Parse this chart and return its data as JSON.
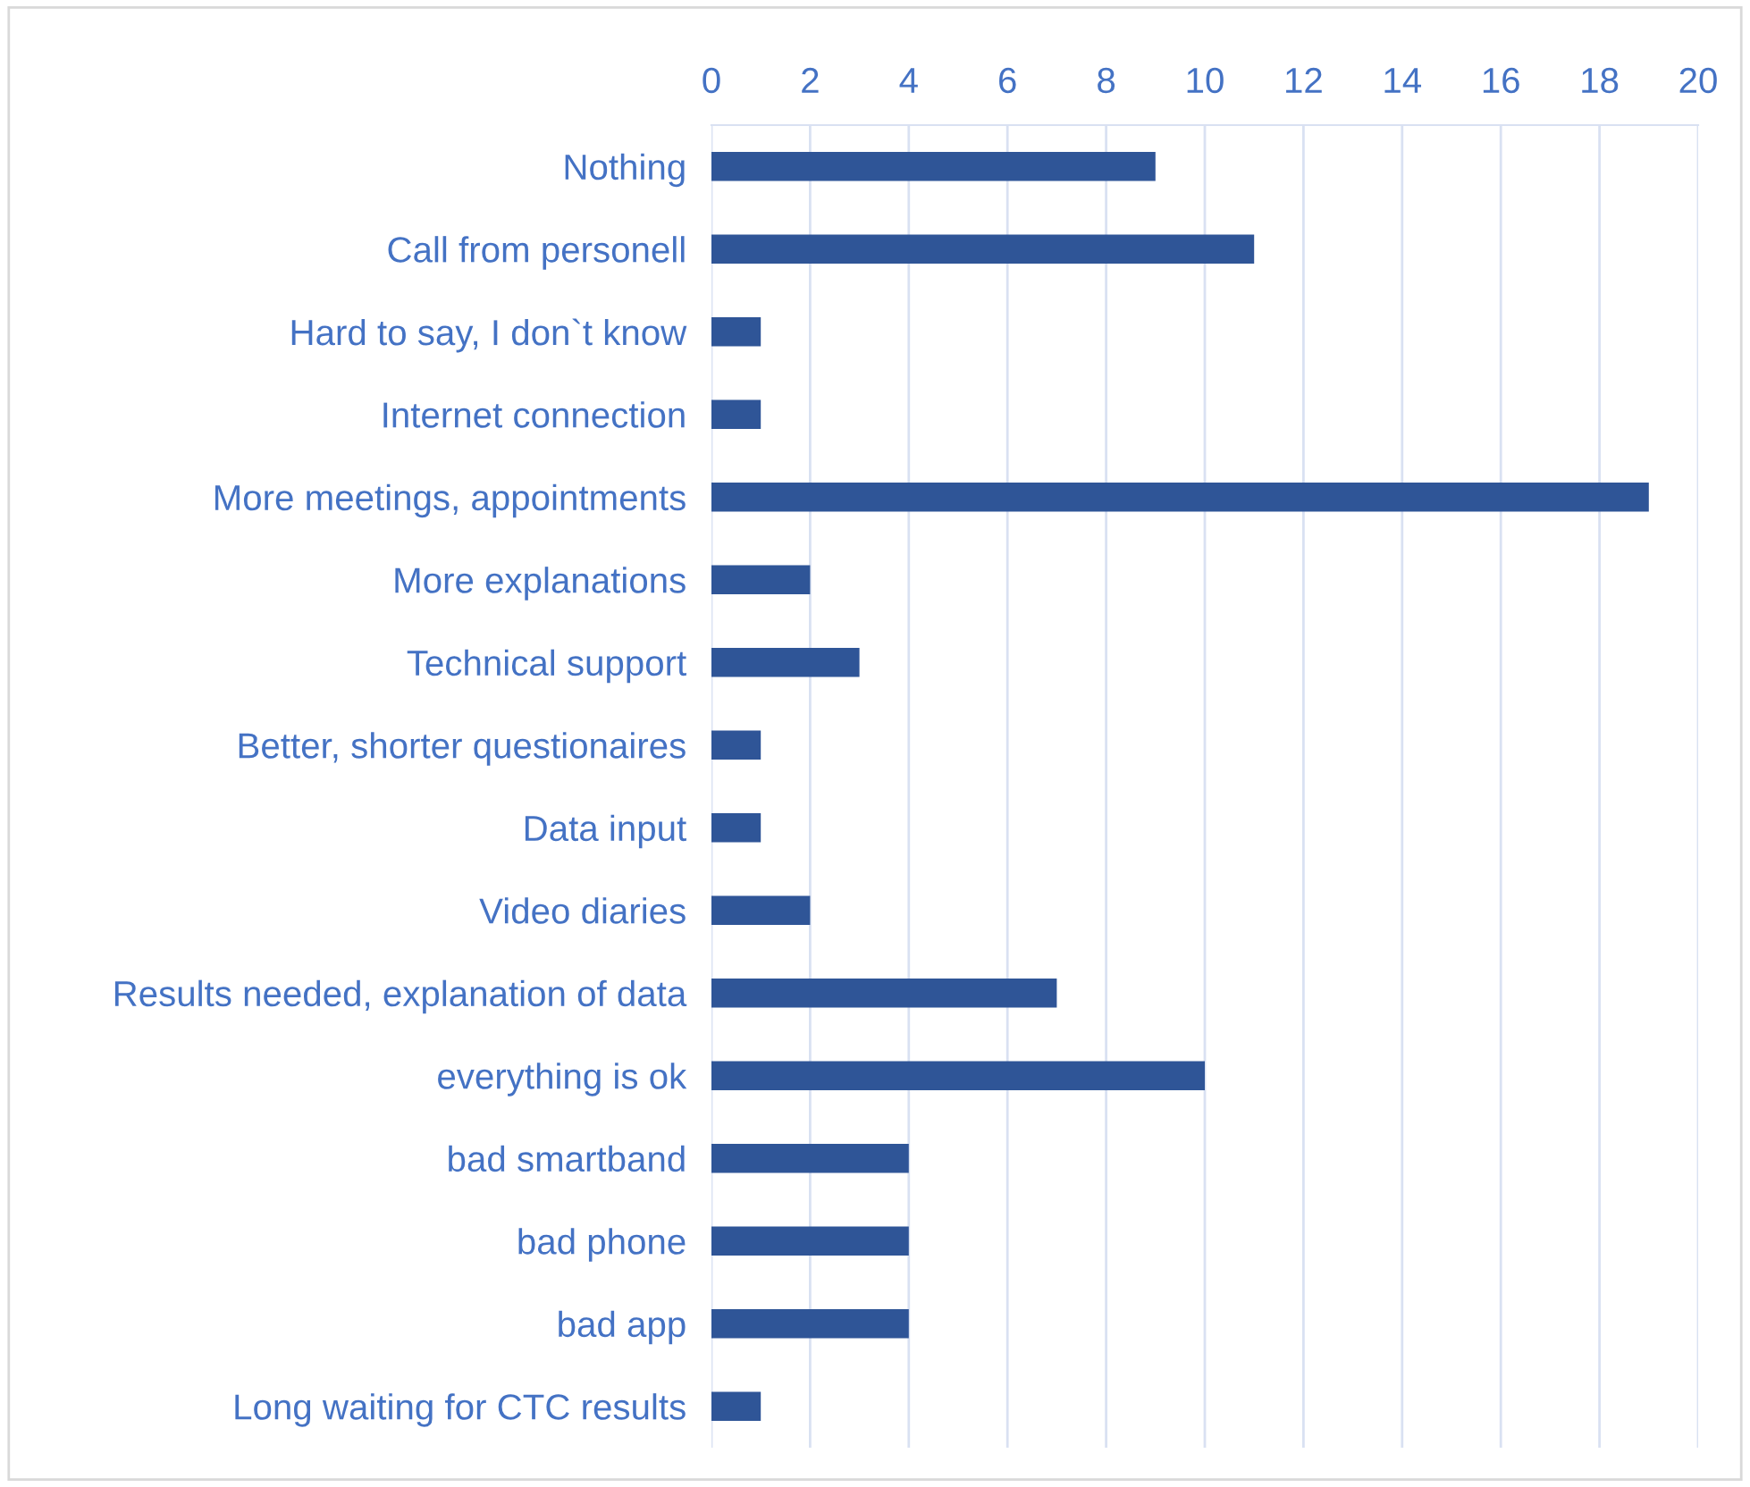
{
  "chart_data": {
    "type": "bar",
    "orientation": "horizontal",
    "categories": [
      "Nothing",
      "Call from personell",
      "Hard to say, I don`t know",
      "Internet connection",
      "More meetings, appointments",
      "More explanations",
      "Technical support",
      "Better, shorter questionaires",
      "Data input",
      "Video diaries",
      "Results needed, explanation of data",
      "everything is ok",
      "bad smartband",
      "bad phone",
      "bad app",
      "Long waiting for CTC results"
    ],
    "values": [
      9,
      11,
      1,
      1,
      19,
      2,
      3,
      1,
      1,
      2,
      7,
      10,
      4,
      4,
      4,
      1
    ],
    "color": "#2f5597",
    "xlim": [
      0,
      20
    ],
    "xticks": [
      0,
      2,
      4,
      6,
      8,
      10,
      12,
      14,
      16,
      18,
      20
    ],
    "grid": "x",
    "legend": false
  }
}
